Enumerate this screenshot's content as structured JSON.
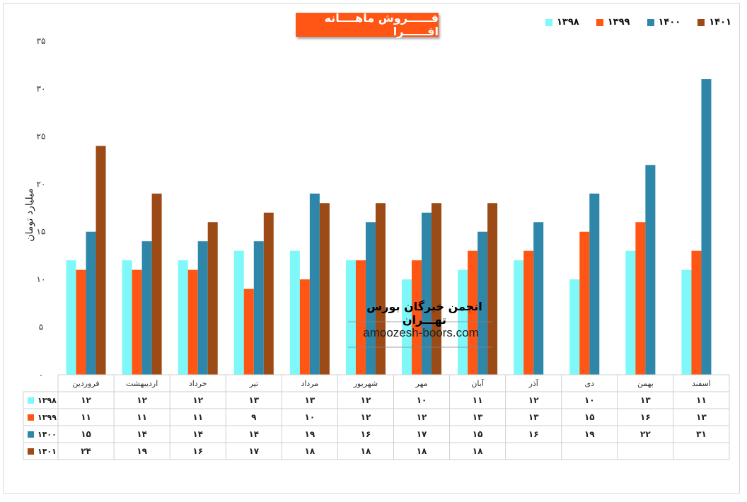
{
  "chart_data": {
    "type": "bar",
    "title": "فــــــروش ماهــــانه افــــــرا",
    "ylabel": "میلیارد تومان",
    "ylim": [
      0,
      35
    ],
    "yticks": [
      "۰",
      "۵",
      "۱۰",
      "۱۵",
      "۲۰",
      "۲۵",
      "۳۰",
      "۳۵"
    ],
    "ytick_values": [
      0,
      5,
      10,
      15,
      20,
      25,
      30,
      35
    ],
    "grid": false,
    "legend_position": "top-right",
    "categories": [
      "فروردین",
      "اردیبهشت",
      "خرداد",
      "تیر",
      "مرداد",
      "شهریور",
      "مهر",
      "آبان",
      "آذر",
      "دی",
      "بهمن",
      "اسفند"
    ],
    "series": [
      {
        "name": "۱۳۹۸",
        "color": "#7ff8fa",
        "values": [
          12,
          12,
          12,
          13,
          13,
          12,
          10,
          11,
          12,
          10,
          13,
          11
        ],
        "labels": [
          "۱۲",
          "۱۲",
          "۱۲",
          "۱۳",
          "۱۳",
          "۱۲",
          "۱۰",
          "۱۱",
          "۱۲",
          "۱۰",
          "۱۳",
          "۱۱"
        ]
      },
      {
        "name": "۱۳۹۹",
        "color": "#ff5515",
        "values": [
          11,
          11,
          11,
          9,
          10,
          12,
          12,
          13,
          13,
          15,
          16,
          13
        ],
        "labels": [
          "۱۱",
          "۱۱",
          "۱۱",
          "۹",
          "۱۰",
          "۱۲",
          "۱۲",
          "۱۳",
          "۱۳",
          "۱۵",
          "۱۶",
          "۱۳"
        ]
      },
      {
        "name": "۱۴۰۰",
        "color": "#2e86a8",
        "values": [
          15,
          14,
          14,
          14,
          19,
          16,
          17,
          15,
          16,
          19,
          22,
          31
        ],
        "labels": [
          "۱۵",
          "۱۴",
          "۱۴",
          "۱۴",
          "۱۹",
          "۱۶",
          "۱۷",
          "۱۵",
          "۱۶",
          "۱۹",
          "۲۲",
          "۳۱"
        ]
      },
      {
        "name": "۱۴۰۱",
        "color": "#9c4a16",
        "values": [
          24,
          19,
          16,
          17,
          18,
          18,
          18,
          18,
          null,
          null,
          null,
          null
        ],
        "labels": [
          "۲۴",
          "۱۹",
          "۱۶",
          "۱۷",
          "۱۸",
          "۱۸",
          "۱۸",
          "۱۸",
          "",
          "",
          "",
          ""
        ]
      }
    ]
  },
  "watermark": {
    "title": "انجمن خبرگان بورس تهـــران",
    "url": "amoozesh-boors.com"
  }
}
